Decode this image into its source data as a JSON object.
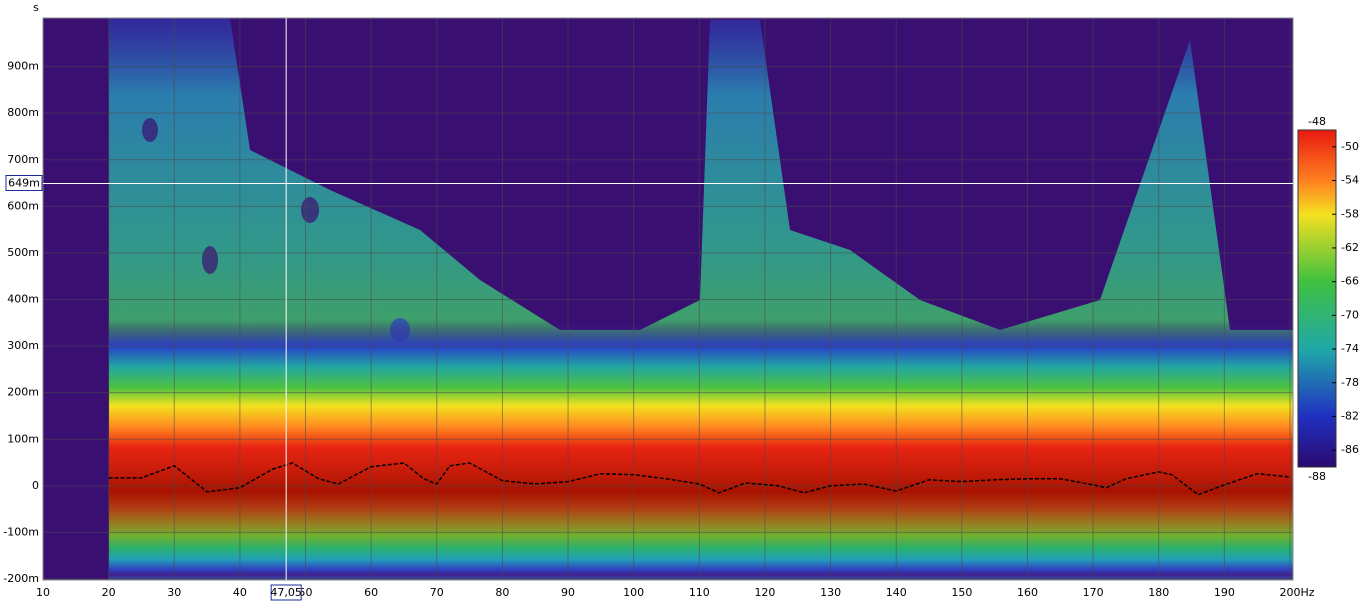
{
  "chart_data": {
    "type": "spectrogram",
    "y_unit": "s",
    "x_unit": "Hz",
    "xlim": [
      10,
      200
    ],
    "xticks": [
      10,
      20,
      30,
      40,
      50,
      60,
      70,
      80,
      90,
      100,
      110,
      120,
      130,
      140,
      150,
      160,
      170,
      180,
      190,
      200
    ],
    "ylim": [
      -0.2,
      1.0
    ],
    "yticks": [
      {
        "value": -0.2,
        "label": "-200m"
      },
      {
        "value": -0.1,
        "label": "-100m"
      },
      0,
      {
        "value": 0.1,
        "label": "100m"
      },
      {
        "value": 0.2,
        "label": "200m"
      },
      {
        "value": 0.3,
        "label": "300m"
      },
      {
        "value": 0.4,
        "label": "400m"
      },
      {
        "value": 0.5,
        "label": "500m"
      },
      {
        "value": 0.6,
        "label": "600m"
      },
      {
        "value": 0.7,
        "label": "700m"
      },
      {
        "value": 0.8,
        "label": "800m"
      },
      {
        "value": 0.9,
        "label": "900m"
      }
    ],
    "grid": true,
    "colorbar": {
      "lim": [
        -88,
        -48
      ],
      "ticks": [
        -48,
        -50,
        -54,
        -58,
        -62,
        -66,
        -70,
        -74,
        -78,
        -82,
        -86,
        -88
      ]
    },
    "cursor": {
      "x": 47.05,
      "x_label": "47,05",
      "y": 0.649,
      "y_label": "649m"
    },
    "line_color": "#000000",
    "x": [
      20,
      25,
      30,
      35,
      40,
      45,
      48,
      52,
      55,
      60,
      65,
      68,
      70,
      72,
      75,
      80,
      85,
      90,
      95,
      100,
      105,
      110,
      113,
      117,
      122,
      126,
      130,
      135,
      140,
      145,
      150,
      155,
      160,
      165,
      170,
      172,
      175,
      180,
      182,
      186,
      190,
      195,
      200
    ],
    "values": [
      0.017,
      0.017,
      0.043,
      -0.013,
      -0.004,
      0.036,
      0.049,
      0.015,
      0.004,
      0.041,
      0.049,
      0.015,
      0.004,
      0.043,
      0.049,
      0.011,
      0.004,
      0.009,
      0.026,
      0.024,
      0.015,
      0.004,
      -0.015,
      0.006,
      0,
      -0.015,
      0,
      0.004,
      -0.011,
      0.013,
      0.009,
      0.013,
      0.015,
      0.015,
      0.002,
      -0.004,
      0.015,
      0.03,
      0.024,
      -0.019,
      0.002,
      0.026,
      0.019
    ]
  }
}
